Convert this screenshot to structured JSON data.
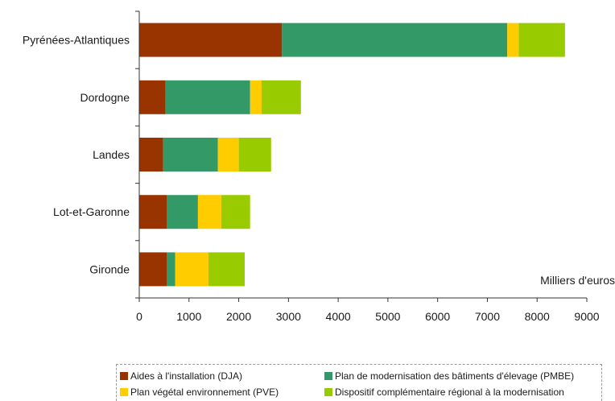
{
  "chart_data": {
    "type": "bar",
    "orientation": "horizontal",
    "stacked": true,
    "categories": [
      "Pyrénées-Atlantiques",
      "Dordogne",
      "Landes",
      "Lot-et-Garonne",
      "Gironde"
    ],
    "series": [
      {
        "name": "Aides à l'installation (DJA)",
        "color": "#993300",
        "values": [
          2870,
          530,
          480,
          550,
          550
        ]
      },
      {
        "name": "Plan de modernisation des bâtiments d'élevage (PMBE)",
        "color": "#339966",
        "values": [
          4530,
          1700,
          1100,
          630,
          170
        ]
      },
      {
        "name": "Plan végétal environnement (PVE)",
        "color": "#ffcc00",
        "values": [
          230,
          230,
          420,
          470,
          670
        ]
      },
      {
        "name": "Dispositif complémentaire régional à la modernisation",
        "color": "#99cc00",
        "values": [
          930,
          790,
          650,
          580,
          730
        ]
      }
    ],
    "xlim": [
      0,
      9000
    ],
    "xticks": [
      "0",
      "1000",
      "2000",
      "3000",
      "4000",
      "5000",
      "6000",
      "7000",
      "8000",
      "9000"
    ],
    "grid": false,
    "annotation": "Milliers d'euros",
    "legend_position": "bottom"
  }
}
